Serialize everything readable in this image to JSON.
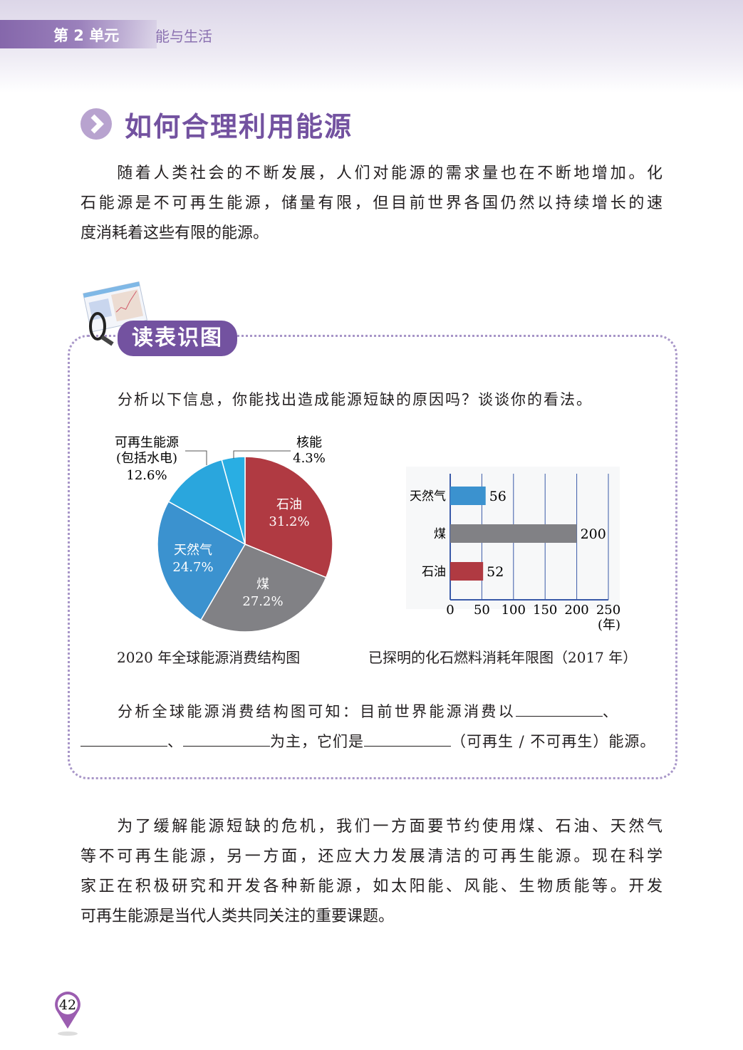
{
  "header": {
    "unit": "第 2 单元",
    "unit_name": "能与生活"
  },
  "section": {
    "title": "如何合理利用能源",
    "icon": "chevron-right-circle-icon"
  },
  "intro": {
    "lines": [
      "　　随着人类社会的不断发展，人们对能源的需求量也在不断地增加。化",
      "石能源是不可再生能源，储量有限，但目前世界各国仍然以持续增长的速",
      "度消耗着这些有限的能源。"
    ]
  },
  "activity": {
    "badge": "读表识图",
    "icon": "magnifier-chart-icon",
    "question": "分析以下信息，你能找出造成能源短缺的原因吗？谈谈你的看法。",
    "fill_line1": "分析全球能源消费结构图可知：目前世界能源消费以",
    "fill_sep": "、",
    "fill_mid": "为主，它们是",
    "fill_end": "（可再生 / 不可再生）能源。"
  },
  "chart_data": [
    {
      "type": "pie",
      "caption": "2020 年全球能源消费结构图",
      "slices": [
        {
          "label": "石油",
          "value": 31.2,
          "value_label": "31.2%",
          "color": "#b03a42"
        },
        {
          "label": "煤",
          "value": 27.2,
          "value_label": "27.2%",
          "color": "#818185"
        },
        {
          "label": "天然气",
          "value": 24.7,
          "value_label": "24.7%",
          "color": "#3b92cf"
        },
        {
          "label": "可再生能源",
          "sublabel": "(包括水电)",
          "value": 12.6,
          "value_label": "12.6%",
          "color": "#2aa6dd"
        },
        {
          "label": "核能",
          "value": 4.3,
          "value_label": "4.3%",
          "color": "#29aee3"
        }
      ]
    },
    {
      "type": "bar",
      "orientation": "horizontal",
      "caption": "已探明的化石燃料消耗年限图（2017 年）",
      "categories": [
        "天然气",
        "煤",
        "石油"
      ],
      "values": [
        56,
        200,
        52
      ],
      "colors": [
        "#3b92cf",
        "#818185",
        "#b03a42"
      ],
      "xlim": [
        0,
        250
      ],
      "xticks": [
        0,
        50,
        100,
        150,
        200,
        250
      ],
      "xunit": "(年)",
      "grid": true
    }
  ],
  "outro": {
    "lines": [
      "　　为了缓解能源短缺的危机，我们一方面要节约使用煤、石油、天然气",
      "等不可再生能源，另一方面，还应大力发展清洁的可再生能源。现在科学",
      "家正在积极研究和开发各种新能源，如太阳能、风能、生物质能等。开发",
      "可再生能源是当代人类共同关注的重要课题。"
    ]
  },
  "footer": {
    "page_number": "42"
  }
}
